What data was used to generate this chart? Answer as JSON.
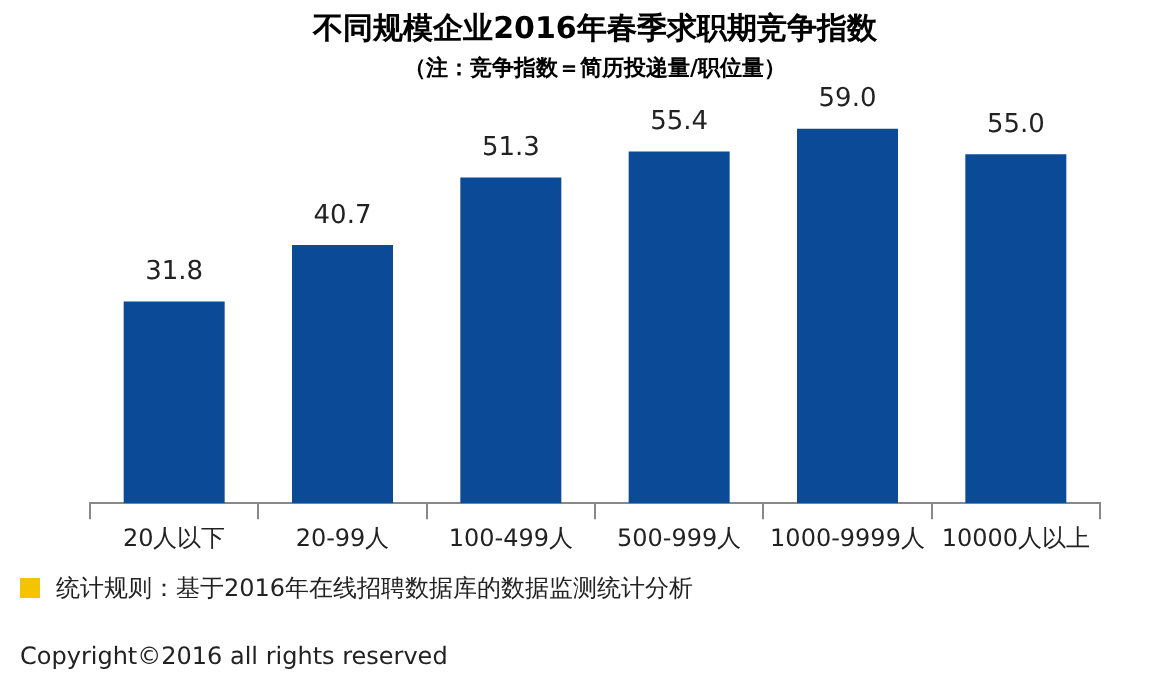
{
  "chart_data": {
    "type": "bar",
    "title": "不同规模企业2016年春季求职期竞争指数",
    "subtitle": "（注：竞争指数＝简历投递量/职位量）",
    "categories": [
      "20人以下",
      "20-99人",
      "100-499人",
      "500-999人",
      "1000-9999人",
      "10000人以上"
    ],
    "values": [
      31.8,
      40.7,
      51.3,
      55.4,
      59.0,
      55.0
    ],
    "value_labels": [
      "31.8",
      "40.7",
      "51.3",
      "55.4",
      "59.0",
      "55.0"
    ],
    "color": "#0b4a97",
    "grid": false,
    "legend": false,
    "annotations": [
      "统计规则：基于2016年在线招聘数据库的数据监测统计分析",
      "Copyright©2016 all rights reserved"
    ]
  }
}
